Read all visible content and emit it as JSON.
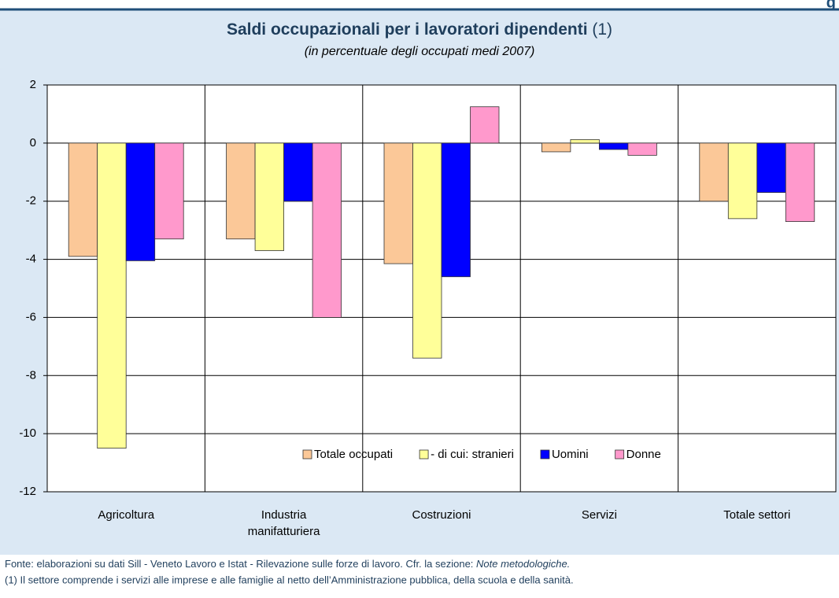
{
  "corner_label": "g",
  "chart_data": {
    "type": "bar",
    "title": "Saldi occupazionali per i lavoratori dipendenti",
    "title_note": "(1)",
    "subtitle": "(in percentuale degli occupati medi 2007)",
    "categories": [
      "Agricoltura",
      "Industria\nmanifatturiera",
      "Costruzioni",
      "Servizi",
      "Totale settori"
    ],
    "series": [
      {
        "name": "Totale occupati",
        "color": "#fbc898",
        "values": [
          -3.9,
          -3.3,
          -4.15,
          -0.3,
          -2.0
        ]
      },
      {
        "name": "- di cui: stranieri",
        "color": "#ffff99",
        "values": [
          -10.5,
          -3.7,
          -7.4,
          0.12,
          -2.6
        ]
      },
      {
        "name": "Uomini",
        "color": "#0000ff",
        "values": [
          -4.05,
          -2.0,
          -4.6,
          -0.22,
          -1.7
        ]
      },
      {
        "name": "Donne",
        "color": "#ff99cc",
        "values": [
          -3.3,
          -6.0,
          1.25,
          -0.42,
          -2.7
        ]
      }
    ],
    "ylim": [
      -12,
      2
    ],
    "yticks": [
      -12,
      -10,
      -8,
      -6,
      -4,
      -2,
      0,
      2
    ],
    "grid": true,
    "legend": "bottom-right"
  },
  "footer": {
    "source": "Fonte: elaborazioni su dati Sill - Veneto Lavoro e Istat - Rilevazione sulle forze di lavoro. Cfr. la sezione: ",
    "source_italic": "Note metodologiche.",
    "note": "(1) Il settore comprende i servizi alle imprese e alle famiglie al netto dell’Amministrazione pubblica, della scuola e della sanità."
  }
}
